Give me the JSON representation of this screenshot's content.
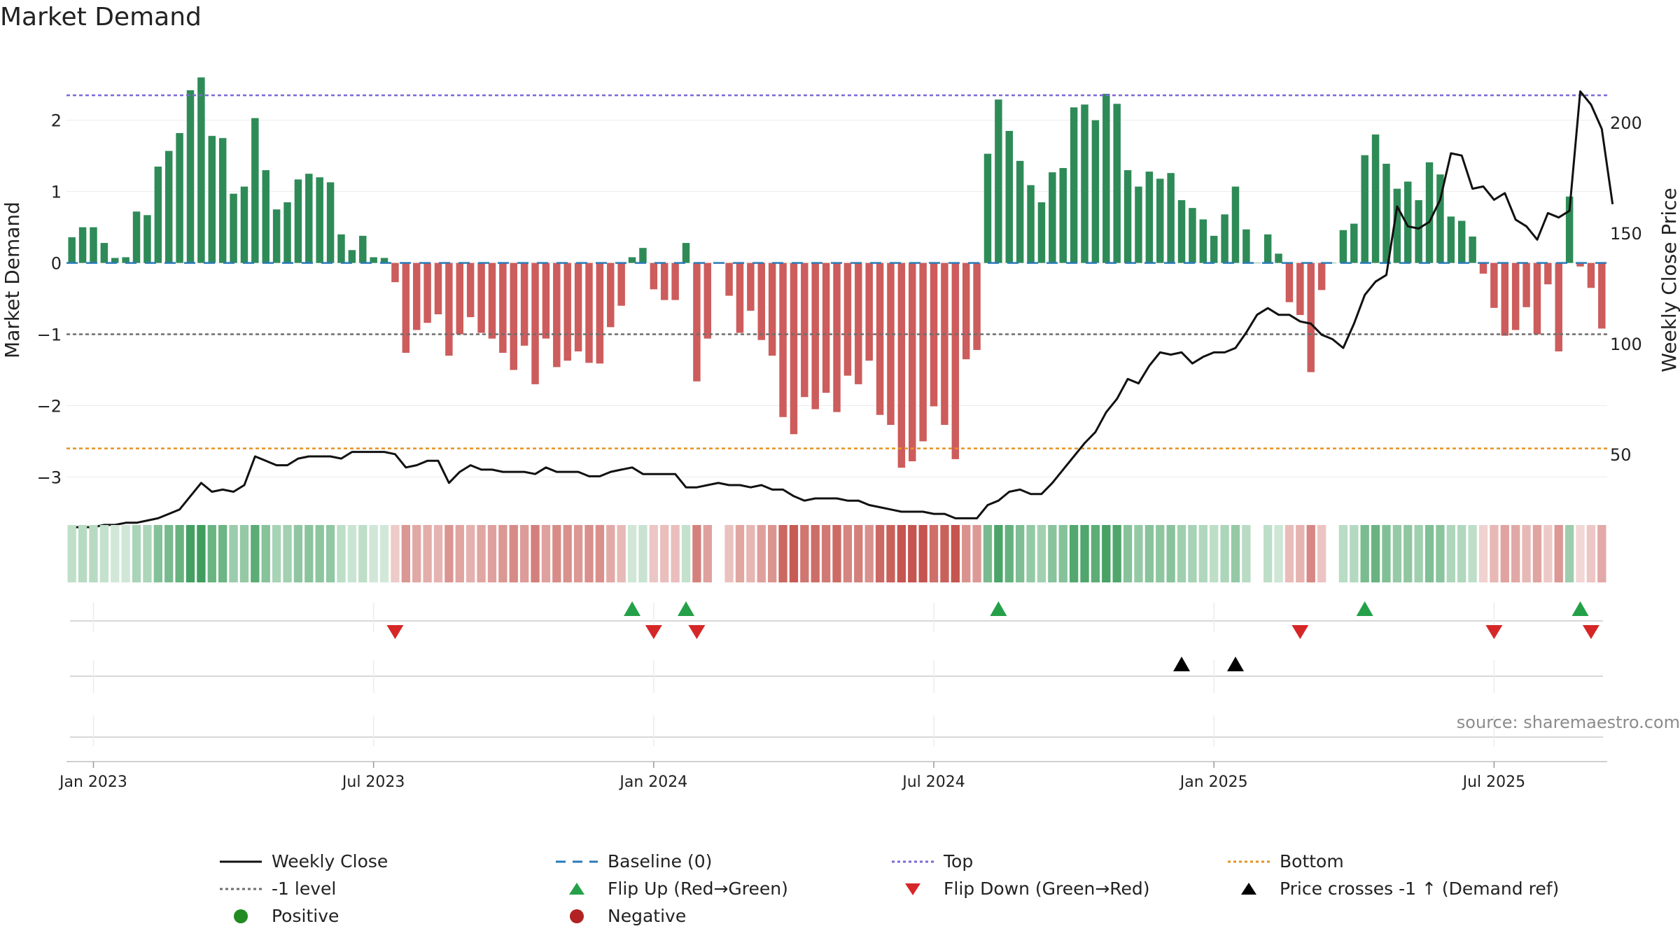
{
  "chart_data": {
    "type": "bar",
    "title": "Market Demand",
    "source_note": "source: sharemaestro.com",
    "ylabel": "Market Demand",
    "y2label": "Weekly Close Price",
    "ylim": [
      -3.3,
      2.9
    ],
    "y2lim": [
      30,
      230
    ],
    "yticks": [
      "−3",
      "−2",
      "−1",
      "0",
      "1",
      "2"
    ],
    "yticks_values": [
      -3,
      -2,
      -1,
      0,
      1,
      2
    ],
    "y2ticks": [
      "50",
      "100",
      "150",
      "200"
    ],
    "y2ticks_values": [
      50,
      100,
      150,
      200
    ],
    "xticks": [
      "Jan 2023",
      "Jul 2023",
      "Jan 2024",
      "Jul 2024",
      "Jan 2025",
      "Jul 2025"
    ],
    "xticks_week_index": [
      2,
      28,
      54,
      80,
      106,
      132
    ],
    "top_level": 2.35,
    "bottom_level": -2.6,
    "minus_one_level": -1,
    "demand_values": [
      0.36,
      0.5,
      0.5,
      0.28,
      0.07,
      0.08,
      0.72,
      0.67,
      1.35,
      1.57,
      1.82,
      2.42,
      2.6,
      1.78,
      1.75,
      0.97,
      1.07,
      2.03,
      1.3,
      0.75,
      0.85,
      1.17,
      1.25,
      1.2,
      1.13,
      0.4,
      0.18,
      0.38,
      0.08,
      0.07,
      -0.27,
      -1.26,
      -0.94,
      -0.84,
      -0.72,
      -1.3,
      -1.0,
      -0.76,
      -0.98,
      -1.06,
      -1.26,
      -1.5,
      -1.16,
      -1.7,
      -1.06,
      -1.46,
      -1.37,
      -1.24,
      -1.4,
      -1.41,
      -0.9,
      -0.6,
      0.08,
      0.21,
      -0.37,
      -0.52,
      -0.52,
      0.28,
      -1.66,
      -1.06,
      0.0,
      -0.46,
      -0.98,
      -0.67,
      -1.08,
      -1.3,
      -2.16,
      -2.4,
      -1.88,
      -2.05,
      -1.82,
      -2.09,
      -1.58,
      -1.7,
      -1.37,
      -2.13,
      -2.27,
      -2.87,
      -2.78,
      -2.5,
      -2.01,
      -2.27,
      -2.75,
      -1.35,
      -1.22,
      1.53,
      2.29,
      1.85,
      1.43,
      1.09,
      0.85,
      1.27,
      1.33,
      2.18,
      2.22,
      2.0,
      2.37,
      2.23,
      1.3,
      1.07,
      1.28,
      1.18,
      1.26,
      0.88,
      0.77,
      0.61,
      0.38,
      0.68,
      1.07,
      0.47,
      0.0,
      0.4,
      0.13,
      -0.55,
      -0.73,
      -1.53,
      -0.38,
      0.0,
      0.46,
      0.55,
      1.51,
      1.8,
      1.39,
      1.04,
      1.14,
      0.88,
      1.41,
      1.24,
      0.65,
      0.59,
      0.37,
      -0.15,
      -0.63,
      -1.02,
      -0.94,
      -0.62,
      -1.0,
      -0.3,
      -1.24,
      0.93,
      -0.05,
      -0.35,
      -0.92
    ],
    "price_values": [
      17,
      17,
      17,
      18,
      18,
      19,
      19,
      20,
      21,
      23,
      25,
      31,
      37,
      33,
      34,
      33,
      36,
      49,
      47,
      45,
      45,
      48,
      49,
      49,
      49,
      48,
      51,
      51,
      51,
      51,
      50,
      44,
      45,
      47,
      47,
      37,
      42,
      45,
      43,
      43,
      42,
      42,
      42,
      41,
      44,
      42,
      42,
      42,
      40,
      40,
      42,
      43,
      44,
      41,
      41,
      41,
      41,
      35,
      35,
      36,
      37,
      36,
      36,
      35,
      36,
      34,
      34,
      31,
      29,
      30,
      30,
      30,
      29,
      29,
      27,
      26,
      25,
      24,
      24,
      24,
      23,
      23,
      21,
      21,
      21,
      27,
      29,
      33,
      34,
      32,
      32,
      37,
      43,
      49,
      55,
      60,
      69,
      75,
      84,
      82,
      90,
      96,
      95,
      96,
      91,
      94,
      96,
      96,
      98,
      105,
      113,
      116,
      113,
      113,
      110,
      109,
      104,
      102,
      98,
      109,
      122,
      128,
      131,
      162,
      153,
      152,
      155,
      165,
      186,
      185,
      170,
      171,
      165,
      168,
      156,
      153,
      147,
      159,
      157,
      160,
      214,
      208,
      197,
      163
    ],
    "flip_up_weeks": [
      52,
      57,
      86,
      120,
      140
    ],
    "flip_down_weeks": [
      30,
      54,
      58,
      114,
      132,
      141
    ],
    "price_cross_weeks": [
      103,
      108
    ],
    "legend": [
      {
        "label": "Weekly Close",
        "marker": "line-black"
      },
      {
        "label": "Baseline (0)",
        "marker": "dash-blue"
      },
      {
        "label": "Top",
        "marker": "dot-purple"
      },
      {
        "label": "Bottom",
        "marker": "dot-orange"
      },
      {
        "label": "-1 level",
        "marker": "dot-gray"
      },
      {
        "label": "Flip Up (Red→Green)",
        "marker": "triangle-up-green"
      },
      {
        "label": "Flip Down (Green→Red)",
        "marker": "triangle-down-red"
      },
      {
        "label": "Price crosses -1 ↑ (Demand ref)",
        "marker": "triangle-up-black"
      },
      {
        "label": "Positive",
        "marker": "circle-green"
      },
      {
        "label": "Negative",
        "marker": "circle-red"
      }
    ],
    "colors": {
      "positive": "#2e8b57",
      "negative": "#cd5c5c",
      "top": "#7b68d6",
      "bottom": "#e69320",
      "minus_one": "#6e6e6e",
      "baseline": "#2a7ab8",
      "price": "#111111",
      "flip_up": "#24a148",
      "flip_down": "#d62728",
      "cross": "#000000",
      "legend_positive": "#228b22",
      "legend_negative": "#b22222"
    }
  }
}
